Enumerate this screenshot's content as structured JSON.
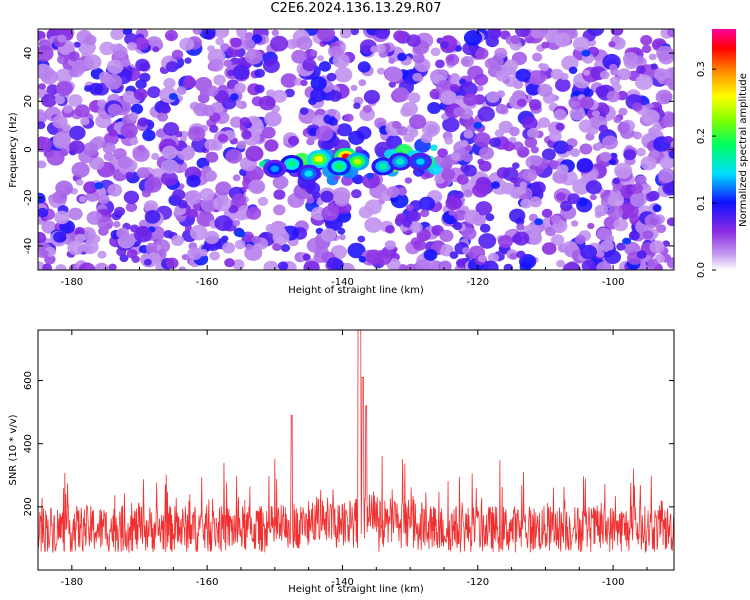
{
  "title": "C2E6.2024.136.13.29.R07",
  "chart_data": [
    {
      "type": "heatmap",
      "xlabel": "Height of straight line (km)",
      "ylabel": "Frequency (Hz)",
      "xlim": [
        -185,
        -91
      ],
      "ylim": [
        -50,
        50
      ],
      "x_ticks": [
        -180,
        -160,
        -140,
        -120,
        -100
      ],
      "y_ticks": [
        -40,
        -20,
        0,
        20,
        40
      ],
      "colorbar": {
        "label": "Normalized spectral amplitude",
        "range": [
          0,
          0.36
        ],
        "ticks": [
          0.0,
          0.1,
          0.2,
          0.3
        ],
        "colors": [
          "#ffffff",
          "#8a2be2",
          "#0000ff",
          "#00ffff",
          "#00ff00",
          "#ffff00",
          "#ff8000",
          "#ff0000",
          "#ff00ff"
        ]
      },
      "description_values": {
        "signal_band_center_freq_hz": -5,
        "signal_band_x_range_km": [
          -152,
          -126
        ],
        "peak_amplitude": 0.33,
        "peak_x_km": -139,
        "background_level": 0.05
      }
    },
    {
      "type": "line",
      "xlabel": "Height of straight line (km)",
      "ylabel": "SNR (10 * v/v)",
      "xlim": [
        -185,
        -91
      ],
      "ylim": [
        0,
        760
      ],
      "x_ticks": [
        -180,
        -160,
        -140,
        -120,
        -100
      ],
      "y_ticks": [
        200,
        400,
        600
      ],
      "color": "#f03030",
      "series_summary": {
        "baseline_mean": 130,
        "noise_range": [
          30,
          300
        ],
        "peak_x_km": -137.5,
        "peak_value": 760,
        "secondary_peaks": [
          {
            "x": -137.0,
            "y": 610
          },
          {
            "x": -147.5,
            "y": 490
          },
          {
            "x": -136.5,
            "y": 520
          }
        ]
      }
    }
  ]
}
